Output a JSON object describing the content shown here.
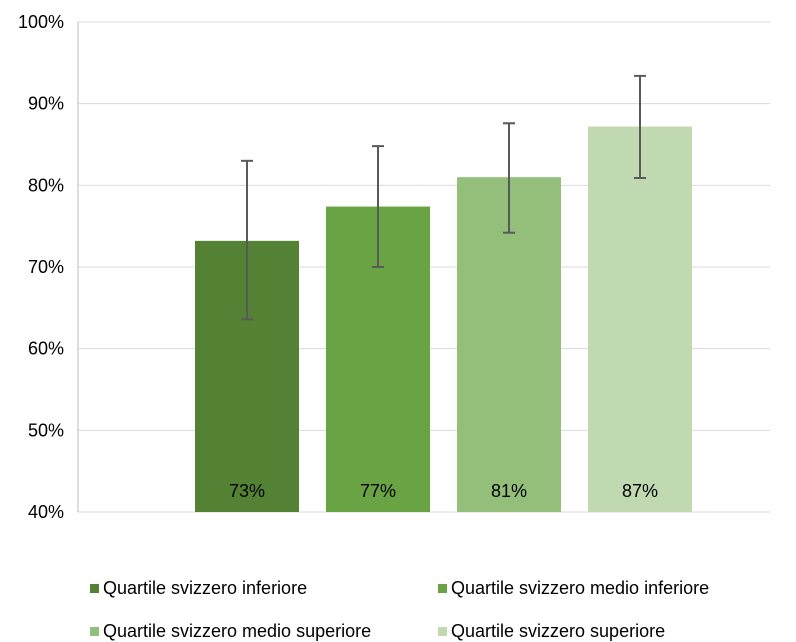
{
  "chart_data": {
    "type": "bar",
    "categories": [
      "Quartile svizzero inferiore",
      "Quartile svizzero medio inferiore",
      "Quartile svizzero medio superiore",
      "Quartile svizzero superiore"
    ],
    "values": [
      73.2,
      77.4,
      81.0,
      87.2
    ],
    "value_labels": [
      "73%",
      "77%",
      "81%",
      "87%"
    ],
    "error_low": [
      63.6,
      70.0,
      74.2,
      80.9
    ],
    "error_high": [
      83.0,
      84.8,
      87.6,
      93.4
    ],
    "colors": [
      "#548235",
      "#6aa343",
      "#93bf7b",
      "#c0d9b1"
    ],
    "ylim": [
      40,
      100
    ],
    "yticks": [
      40,
      50,
      60,
      70,
      80,
      90,
      100
    ],
    "ytick_labels": [
      "40%",
      "50%",
      "60%",
      "70%",
      "80%",
      "90%",
      "100%"
    ],
    "grid": true,
    "legend_position": "bottom",
    "title": "",
    "xlabel": "",
    "ylabel": ""
  }
}
